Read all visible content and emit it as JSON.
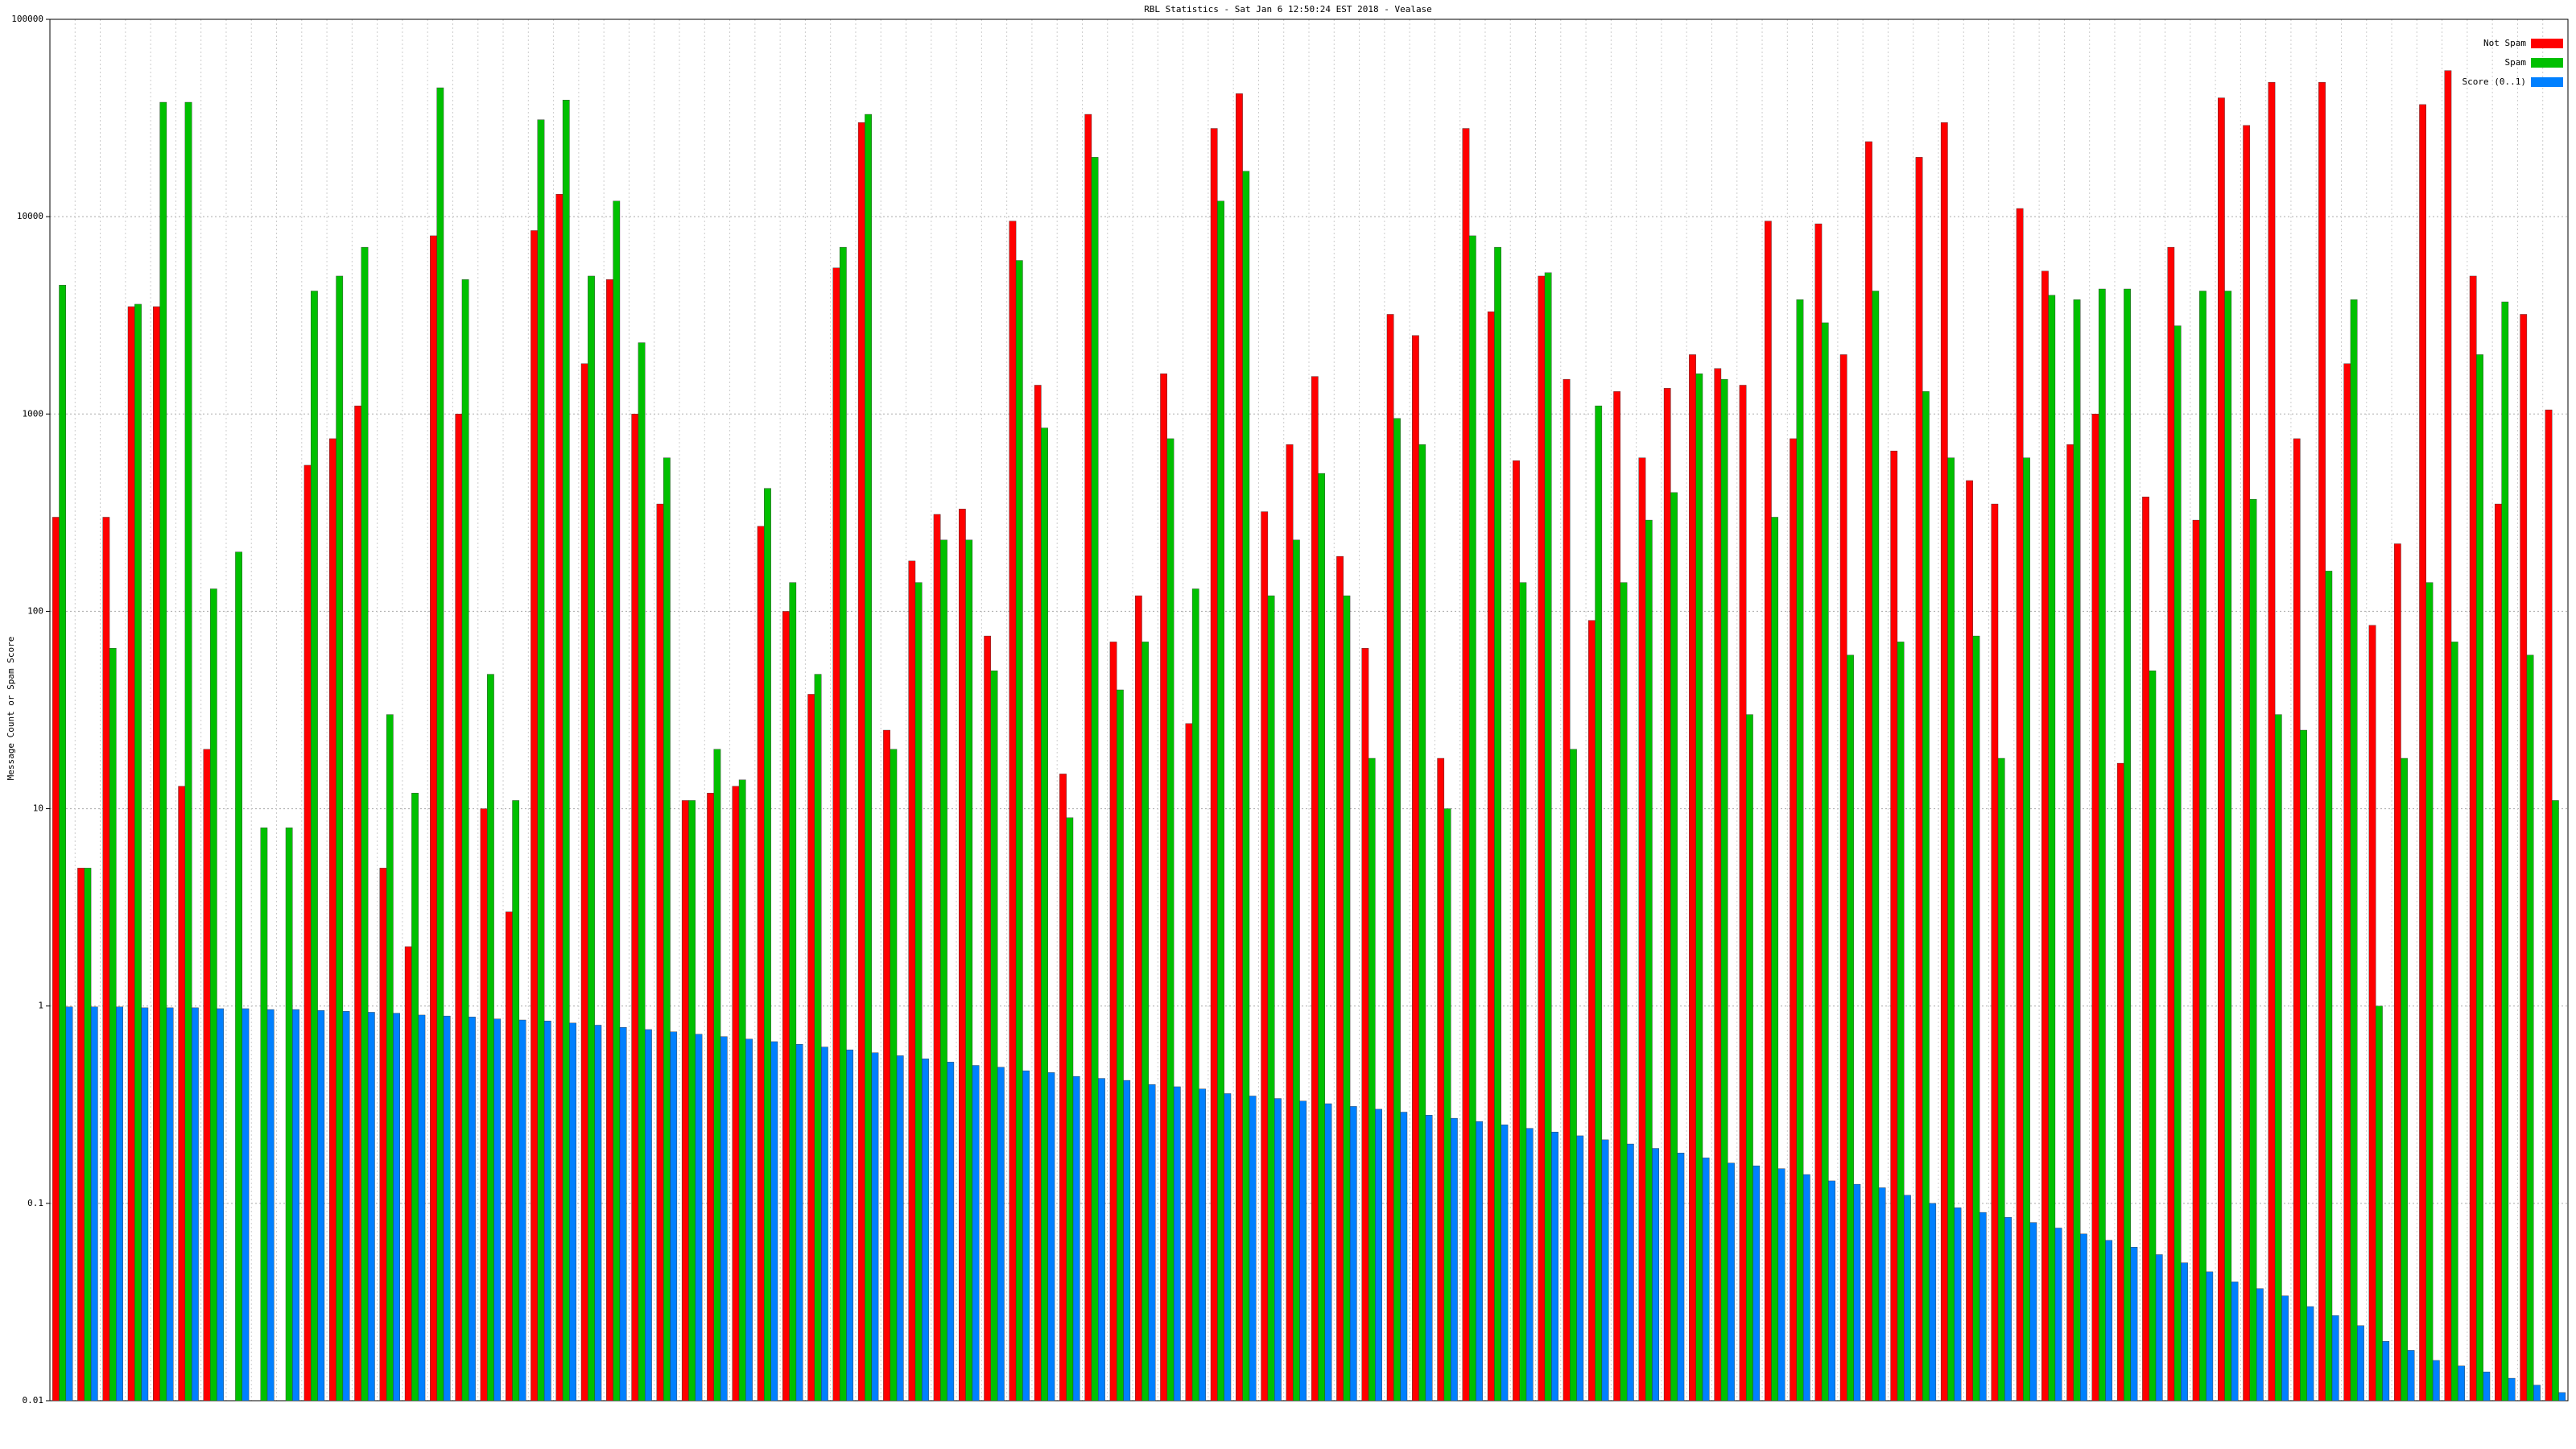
{
  "chart_data": {
    "type": "bar",
    "title": "RBL Statistics - Sat Jan  6 12:50:24 EST 2018 - Vealase",
    "y_label": "Message Count or Spam Score",
    "log_y": true,
    "grid": true,
    "legend": "top-right",
    "ylim": [
      0.01,
      100000
    ],
    "yticks": [
      0.01,
      0.1,
      1,
      10,
      100,
      1000,
      10000,
      100000
    ],
    "categories": [
      null,
      null,
      null,
      null,
      null,
      null,
      null,
      null,
      null,
      null,
      null,
      null,
      null,
      null,
      null,
      null,
      null,
      null,
      null,
      null,
      null,
      null,
      null,
      null,
      null,
      null,
      null,
      null,
      null,
      null,
      null,
      null,
      null,
      null,
      null,
      null,
      null,
      null,
      null,
      null,
      null,
      null,
      null,
      null,
      null,
      null,
      null,
      null,
      null,
      null,
      null,
      null,
      null,
      null,
      null,
      null,
      null,
      null,
      null,
      null,
      null,
      null,
      null,
      null,
      null,
      null,
      null,
      null,
      null,
      null,
      null,
      null,
      null,
      null,
      null,
      null,
      null,
      null,
      null,
      null,
      null,
      null,
      null,
      null,
      null,
      null,
      null,
      null,
      null,
      null,
      null,
      null,
      null,
      null,
      null,
      null,
      null,
      null,
      null,
      null
    ],
    "series": [
      {
        "name": "Not Spam",
        "color": "#ff0000",
        "values": [
          300,
          5,
          300,
          3500,
          3500,
          13,
          20,
          null,
          null,
          null,
          550,
          750,
          1100,
          5,
          2,
          8000,
          1000,
          10,
          3,
          8500,
          13000,
          1800,
          4800,
          1000,
          350,
          11,
          12,
          13,
          270,
          100,
          38,
          5500,
          30000,
          25,
          180,
          310,
          330,
          75,
          9500,
          1400,
          15,
          33000,
          70,
          120,
          1600,
          27,
          28000,
          42000,
          320,
          700,
          1550,
          190,
          65,
          3200,
          2500,
          18,
          28000,
          3300,
          580,
          5000,
          1500,
          90,
          1300,
          600,
          1350,
          2000,
          1700,
          1400,
          9500,
          750,
          9200,
          2000,
          24000,
          650,
          20000,
          30000,
          460,
          350,
          11000,
          5300,
          700,
          1000,
          17,
          380,
          7000,
          290,
          40000,
          29000,
          48000,
          750,
          48000,
          1800,
          85,
          220,
          37000,
          55000,
          5000,
          350,
          3200,
          1050
        ]
      },
      {
        "name": "Spam",
        "color": "#00c000",
        "values": [
          4500,
          5,
          65,
          3600,
          38000,
          38000,
          130,
          200,
          8,
          8,
          4200,
          5000,
          7000,
          30,
          12,
          45000,
          4800,
          48,
          11,
          31000,
          39000,
          5000,
          12000,
          2300,
          600,
          11,
          20,
          14,
          420,
          140,
          48,
          7000,
          33000,
          20,
          140,
          230,
          230,
          50,
          6000,
          850,
          9,
          20000,
          40,
          70,
          750,
          130,
          12000,
          17000,
          120,
          230,
          500,
          120,
          18,
          950,
          700,
          10,
          8000,
          7000,
          140,
          5200,
          20,
          1100,
          140,
          290,
          400,
          1600,
          1500,
          30,
          300,
          3800,
          2900,
          60,
          4200,
          70,
          1300,
          600,
          75,
          18,
          600,
          4000,
          3800,
          4300,
          4300,
          50,
          2800,
          4200,
          4200,
          370,
          30,
          25,
          160,
          3800,
          1,
          18,
          140,
          70,
          2000,
          3700,
          60,
          11
        ]
      },
      {
        "name": "Score (0..1)",
        "color": "#0080ff",
        "values": [
          0.99,
          0.99,
          0.99,
          0.98,
          0.98,
          0.98,
          0.97,
          0.97,
          0.96,
          0.96,
          0.95,
          0.94,
          0.93,
          0.92,
          0.9,
          0.89,
          0.88,
          0.86,
          0.85,
          0.84,
          0.82,
          0.8,
          0.78,
          0.76,
          0.74,
          0.72,
          0.7,
          0.68,
          0.66,
          0.64,
          0.62,
          0.6,
          0.58,
          0.56,
          0.54,
          0.52,
          0.5,
          0.49,
          0.47,
          0.46,
          0.44,
          0.43,
          0.42,
          0.4,
          0.39,
          0.38,
          0.36,
          0.35,
          0.34,
          0.33,
          0.32,
          0.31,
          0.3,
          0.29,
          0.28,
          0.27,
          0.26,
          0.25,
          0.24,
          0.23,
          0.22,
          0.21,
          0.2,
          0.19,
          0.18,
          0.17,
          0.16,
          0.155,
          0.15,
          0.14,
          0.13,
          0.125,
          0.12,
          0.11,
          0.1,
          0.095,
          0.09,
          0.085,
          0.08,
          0.075,
          0.07,
          0.065,
          0.06,
          0.055,
          0.05,
          0.045,
          0.04,
          0.037,
          0.034,
          0.03,
          0.027,
          0.024,
          0.02,
          0.018,
          0.016,
          0.015,
          0.014,
          0.013,
          0.012,
          0.011
        ]
      }
    ]
  }
}
